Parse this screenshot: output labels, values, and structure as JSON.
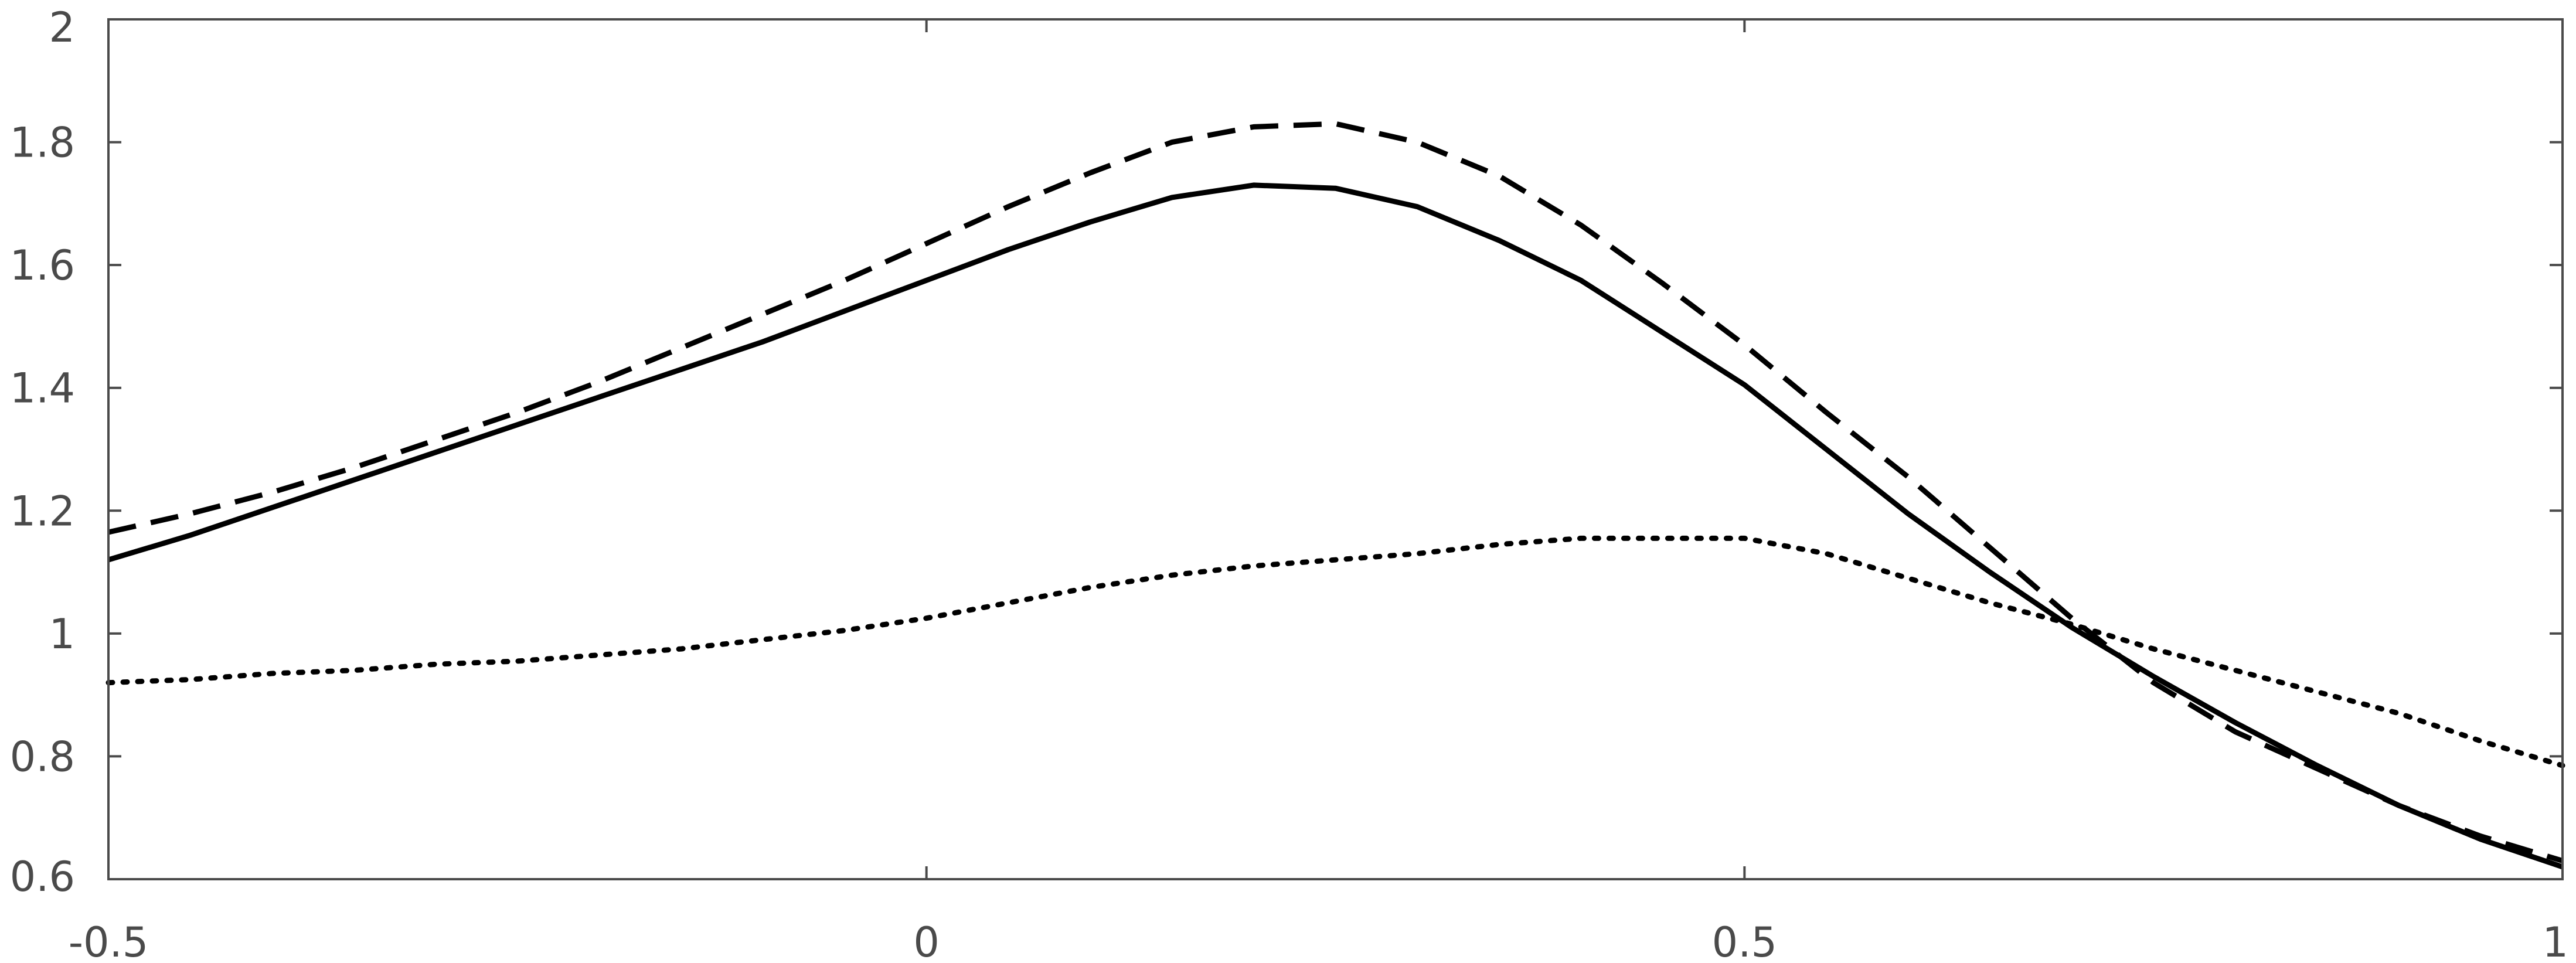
{
  "chart_data": {
    "type": "line",
    "title": "",
    "xlabel": "",
    "ylabel": "",
    "xlim": [
      -0.5,
      1
    ],
    "ylim": [
      0.6,
      2
    ],
    "grid": false,
    "x_ticks": [
      "-0.5",
      "0",
      "0.5",
      "1"
    ],
    "y_ticks": [
      "2",
      "1.8",
      "1.6",
      "1.4",
      "1.2",
      "1",
      "0.8",
      "0.6"
    ],
    "x": [
      -0.5,
      -0.45,
      -0.4,
      -0.35,
      -0.3,
      -0.25,
      -0.2,
      -0.15,
      -0.1,
      -0.05,
      0,
      0.05,
      0.1,
      0.15,
      0.2,
      0.25,
      0.3,
      0.35,
      0.4,
      0.45,
      0.5,
      0.55,
      0.6,
      0.65,
      0.7,
      0.75,
      0.8,
      0.85,
      0.9,
      0.95,
      1.0
    ],
    "series": [
      {
        "style": "solid",
        "color": "#000000",
        "values": [
          1.12,
          1.16,
          1.205,
          1.25,
          1.295,
          1.34,
          1.385,
          1.43,
          1.475,
          1.525,
          1.575,
          1.625,
          1.67,
          1.71,
          1.73,
          1.725,
          1.695,
          1.64,
          1.575,
          1.49,
          1.405,
          1.3,
          1.195,
          1.1,
          1.01,
          0.93,
          0.855,
          0.785,
          0.72,
          0.665,
          0.62
        ]
      },
      {
        "style": "dashed",
        "color": "#000000",
        "values": [
          1.165,
          1.195,
          1.23,
          1.27,
          1.315,
          1.36,
          1.41,
          1.465,
          1.52,
          1.575,
          1.635,
          1.695,
          1.75,
          1.8,
          1.825,
          1.83,
          1.8,
          1.745,
          1.665,
          1.57,
          1.47,
          1.36,
          1.255,
          1.14,
          1.025,
          0.92,
          0.84,
          0.78,
          0.72,
          0.67,
          0.63
        ]
      },
      {
        "style": "dotted",
        "color": "#000000",
        "values": [
          0.92,
          0.925,
          0.935,
          0.94,
          0.95,
          0.955,
          0.965,
          0.975,
          0.99,
          1.005,
          1.025,
          1.05,
          1.075,
          1.095,
          1.11,
          1.12,
          1.13,
          1.145,
          1.155,
          1.155,
          1.155,
          1.13,
          1.09,
          1.05,
          1.015,
          0.975,
          0.94,
          0.905,
          0.87,
          0.825,
          0.785
        ]
      }
    ]
  }
}
